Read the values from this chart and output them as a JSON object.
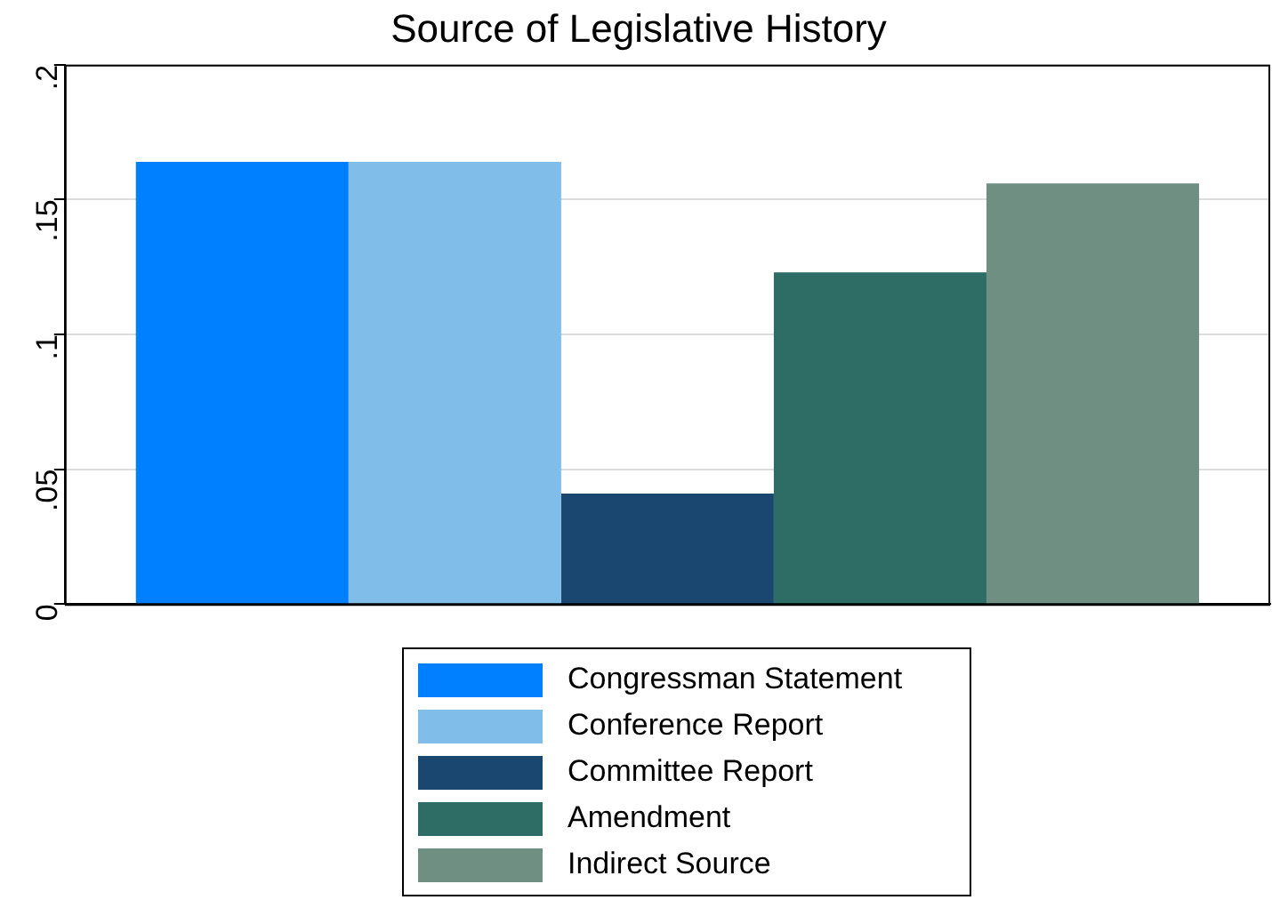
{
  "chart_data": {
    "type": "bar",
    "title": "Source of Legislative History",
    "categories": [
      null
    ],
    "series": [
      {
        "name": "Congressman Statement",
        "color": "#0080ff",
        "values": [
          0.164
        ]
      },
      {
        "name": "Conference Report",
        "color": "#80bde8",
        "values": [
          0.164
        ]
      },
      {
        "name": "Committee Report",
        "color": "#1a476f",
        "values": [
          0.041
        ]
      },
      {
        "name": "Amendment",
        "color": "#2d6d66",
        "values": [
          0.123
        ]
      },
      {
        "name": "Indirect Source",
        "color": "#6e8f82",
        "values": [
          0.156
        ]
      }
    ],
    "ylim": [
      0,
      0.2
    ],
    "yticks": [
      0,
      {
        "value": 0.05,
        "label": ".05"
      },
      {
        "value": 0.1,
        "label": ".1"
      },
      {
        "value": 0.15,
        "label": ".15"
      },
      {
        "value": 0.2,
        "label": ".2"
      }
    ],
    "grid": "y",
    "legend": "bottom"
  }
}
